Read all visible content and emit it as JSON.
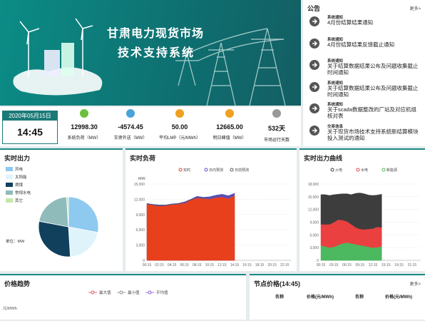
{
  "header": {
    "title_line1": "甘肃电力现货市场",
    "title_line2": "技术支持系统"
  },
  "notices": {
    "title": "公告",
    "more": "更多>",
    "items": [
      {
        "category": "系统通知",
        "text": "4月份结算结果通知"
      },
      {
        "category": "系统通知",
        "text": "4月份结算结果反馈截止通知"
      },
      {
        "category": "系统通知",
        "text": "关于结算数据结果公布及问题收集截止时间通知"
      },
      {
        "category": "系统通知",
        "text": "关于结算数据结果公布及问题收集截止时间通知"
      },
      {
        "category": "系统通知",
        "text": "关于scada数据整改的厂站及对应机组核对表"
      },
      {
        "category": "交易信息",
        "text": "关于现货市场技术支持系统新结算模块投入测试的通知"
      }
    ]
  },
  "status": {
    "date": "2020年05月15日",
    "time": "14:45",
    "stats": [
      {
        "value": "12998.30",
        "label": "系统负荷（MW）",
        "color": "#6cbf3c",
        "icon": "⚡"
      },
      {
        "value": "-4574.45",
        "label": "甘肃外送（MW）",
        "color": "#4aa3d8",
        "icon": "〰"
      },
      {
        "value": "50.00",
        "label": "平均LMP（元/MWh）",
        "color": "#f0a020",
        "icon": "$"
      },
      {
        "value": "12665.00",
        "label": "明日峰值（MW）",
        "color": "#f0a020",
        "icon": "📈"
      },
      {
        "value": "532天",
        "label": "市场运行天数",
        "color": "#999999",
        "icon": "⌛"
      }
    ]
  },
  "output_pie": {
    "type": "pie",
    "title": "实时出力",
    "unit_label": "单位：MW",
    "categories": [
      "风电",
      "太阳能",
      "燃煤",
      "常规水电",
      "其它"
    ],
    "colors": [
      "#8ec9ef",
      "#dff3fb",
      "#10405c",
      "#8fbcbb",
      "#c5e8a8"
    ],
    "values": [
      28,
      21,
      29,
      21,
      1
    ]
  },
  "load_chart": {
    "type": "line",
    "title": "实时负荷",
    "y_label": "MW",
    "categories": [
      "00:15",
      null,
      "02:15",
      null,
      "04:15",
      null,
      "06:15",
      null,
      "08:15",
      null,
      "10:15",
      null,
      "12:15",
      null,
      "14:15",
      null,
      "16:15",
      null,
      "18:15",
      null,
      "20:15",
      null,
      "22:15",
      null
    ],
    "ylim": [
      0,
      15000
    ],
    "yticks": [
      0,
      {
        "value": 3000,
        "label": "3,000"
      },
      {
        "value": 6000,
        "label": "6,000"
      },
      {
        "value": 9000,
        "label": "9,000"
      },
      {
        "value": 12000,
        "label": "12,000"
      },
      {
        "value": 15000,
        "label": "15,000"
      }
    ],
    "series": [
      {
        "name": "实时",
        "color": "#e8401c",
        "area": true,
        "values": [
          11000,
          10800,
          10600,
          10700,
          10900,
          11000,
          11200,
          11800,
          12200,
          12100,
          12000,
          12300,
          12400,
          12100,
          12700,
          null,
          null,
          null,
          null,
          null,
          null,
          null,
          null,
          null
        ]
      },
      {
        "name": "日内预测",
        "color": "#5a4fd0",
        "area": true,
        "values": [
          11200,
          11000,
          10900,
          10900,
          11100,
          11200,
          11500,
          12000,
          12600,
          12400,
          12500,
          12800,
          13000,
          12700,
          13200,
          null,
          null,
          null,
          null,
          null,
          null,
          null,
          null,
          null
        ]
      },
      {
        "name": "日前预测",
        "color": "#555555",
        "area": false,
        "values": [
          11100,
          10900,
          10800,
          10800,
          11000,
          11100,
          11400,
          11900,
          12400,
          12300,
          12300,
          12600,
          12800,
          12500,
          13000,
          null,
          null,
          null,
          null,
          null,
          null,
          null,
          null,
          null
        ]
      }
    ]
  },
  "output_curve": {
    "type": "stacked-area",
    "title": "实时出力曲线",
    "categories": [
      "00:15",
      null,
      null,
      "03:15",
      null,
      null,
      "06:15",
      null,
      null,
      "09:15",
      null,
      null,
      "12:15",
      null,
      null,
      "15:15",
      null,
      null,
      "18:15",
      null,
      null,
      "21:15",
      null,
      null
    ],
    "ylim": [
      0,
      18000
    ],
    "yticks": [
      0,
      {
        "value": 3000,
        "label": "3,000"
      },
      {
        "value": 6000,
        "label": "6,000"
      },
      {
        "value": 9000,
        "label": "9,000"
      },
      {
        "value": 12000,
        "label": "12,000"
      },
      {
        "value": 15000,
        "label": "15,000"
      },
      {
        "value": 18000,
        "label": "18,000"
      }
    ],
    "series": [
      {
        "name": "火电",
        "color": "#3d3d3d",
        "values": [
          7000,
          7000,
          6800,
          6500,
          6000,
          6200,
          6500,
          7000,
          8000,
          8500,
          8400,
          8000,
          7800,
          7500,
          7800,
          null,
          null,
          null,
          null,
          null,
          null,
          null,
          null,
          null
        ]
      },
      {
        "name": "水电",
        "color": "#ea4040",
        "values": [
          5000,
          5200,
          5500,
          5800,
          6000,
          5500,
          5000,
          4500,
          4000,
          3800,
          3900,
          4200,
          4500,
          4800,
          4500,
          null,
          null,
          null,
          null,
          null,
          null,
          null,
          null,
          null
        ]
      },
      {
        "name": "新能源",
        "color": "#4cb860",
        "values": [
          3500,
          3300,
          3000,
          3200,
          3600,
          4000,
          4200,
          4000,
          3800,
          3600,
          3400,
          3200,
          3000,
          3100,
          3300,
          null,
          null,
          null,
          null,
          null,
          null,
          null,
          null,
          null
        ]
      }
    ]
  },
  "price_trend": {
    "title": "价格趋势",
    "y_label": "元/MWh",
    "legend": [
      {
        "name": "最大值",
        "color": "#e05050"
      },
      {
        "name": "最小值",
        "color": "#888888"
      },
      {
        "name": "平均值",
        "color": "#8a5ad0"
      }
    ]
  },
  "node_price": {
    "title": "节点价格(14:45)",
    "more": "更多>",
    "columns": [
      "名称",
      "价格(元/MWh)",
      "名称",
      "价格(元/MWh)"
    ]
  }
}
